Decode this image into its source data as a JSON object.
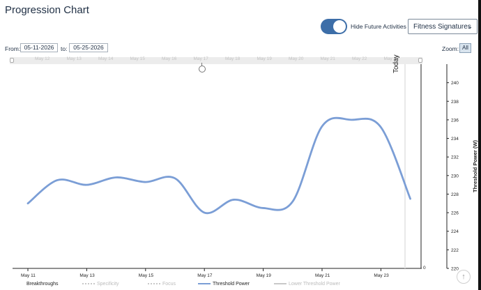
{
  "page": {
    "title": "Progression Chart",
    "hide_future_label": "Hide Future Activities",
    "hide_future_on": true,
    "signature_select": "Fitness Signatures",
    "from_label": "From:",
    "from_value": "05-11-2026",
    "to_label": "to:",
    "to_value": "05-25-2026",
    "zoom_label": "Zoom:",
    "zoom_value": "All",
    "today_label": "Today",
    "scroll_top_icon": "arrow-up-icon"
  },
  "navigator": {
    "ticks": [
      "May 12",
      "May 13",
      "May 14",
      "May 15",
      "May 16",
      "May 17",
      "May 18",
      "May 19",
      "May 20",
      "May 21",
      "May 22",
      "May 23"
    ]
  },
  "chart_data": {
    "type": "line",
    "x": [
      "May 11",
      "May 12",
      "May 13",
      "May 14",
      "May 15",
      "May 16",
      "May 17",
      "May 18",
      "May 19",
      "May 20",
      "May 21",
      "May 22",
      "May 23",
      "May 24"
    ],
    "x_tick_labels": [
      "May 11",
      "May 13",
      "May 15",
      "May 17",
      "May 19",
      "May 21",
      "May 23"
    ],
    "series": [
      {
        "name": "Threshold Power",
        "color": "#7b9ed6",
        "values": [
          227,
          229.5,
          229,
          229.8,
          229.3,
          229.7,
          226,
          227.4,
          226.5,
          227.2,
          235.3,
          236,
          235.2,
          227.5
        ]
      }
    ],
    "ylabel": "Threshold Power (W)",
    "ylim": [
      220,
      242
    ],
    "y_ticks": [
      220,
      222,
      224,
      226,
      228,
      230,
      232,
      234,
      236,
      238,
      240
    ],
    "secondary_axis_zero": "0",
    "grid": false,
    "legend_position": "bottom",
    "legend": [
      {
        "name": "Breakthroughs",
        "color": "#2f2f2f",
        "style": "none"
      },
      {
        "name": "Specificity",
        "color": "#c8c8c8",
        "style": "dotted"
      },
      {
        "name": "Focus",
        "color": "#c8c8c8",
        "style": "dotted"
      },
      {
        "name": "Threshold Power",
        "color": "#7b9ed6",
        "style": "solid"
      },
      {
        "name": "Lower Threshold Power",
        "color": "#c8c8c8",
        "style": "solid"
      }
    ]
  }
}
